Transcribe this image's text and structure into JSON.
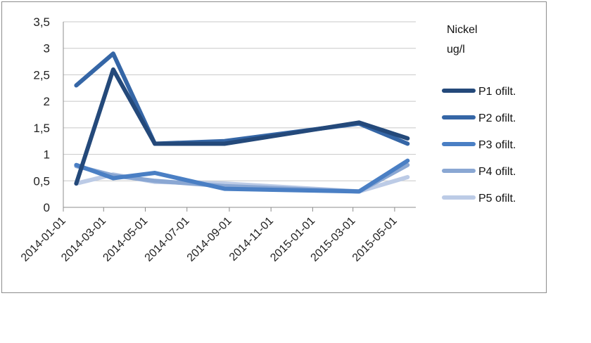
{
  "chart_data": {
    "type": "line",
    "legend_title": [
      "Nickel",
      "ug/l"
    ],
    "ylim": [
      0,
      3.5
    ],
    "yticks": [
      "0",
      "0,5",
      "1",
      "1,5",
      "2",
      "2,5",
      "3",
      "3,5"
    ],
    "xlim": [
      "2014-01-01",
      "2015-06-01"
    ],
    "xticks": [
      "2014-01-01",
      "2014-03-01",
      "2014-05-01",
      "2014-07-01",
      "2014-09-01",
      "2014-11-01",
      "2015-01-01",
      "2015-03-01",
      "2015-05-01"
    ],
    "grid": true,
    "legend_position": "right",
    "x": [
      "2014-01-20",
      "2014-03-15",
      "2014-05-15",
      "2014-08-25",
      "2015-03-10",
      "2015-05-20"
    ],
    "series": [
      {
        "name": "P1 ofilt.",
        "color": "#24497a",
        "values": [
          0.45,
          2.6,
          1.2,
          1.2,
          1.6,
          1.3
        ]
      },
      {
        "name": "P2 ofilt.",
        "color": "#3566a6",
        "values": [
          2.3,
          2.9,
          1.2,
          1.25,
          1.58,
          1.2
        ]
      },
      {
        "name": "P3 ofilt.",
        "color": "#4a7fc4",
        "values": [
          0.8,
          0.55,
          0.65,
          0.35,
          0.3,
          0.88
        ]
      },
      {
        "name": "P4 ofilt.",
        "color": "#8aa7d3",
        "values": [
          0.78,
          0.6,
          0.5,
          0.4,
          0.3,
          0.8
        ]
      },
      {
        "name": "P5 ofilt.",
        "color": "#bccbe6",
        "values": [
          0.45,
          0.62,
          0.48,
          0.45,
          0.3,
          0.57
        ]
      }
    ]
  }
}
